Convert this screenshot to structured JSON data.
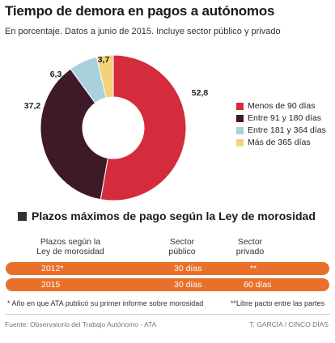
{
  "header": {
    "title": "Tiempo de demora en pagos a autónomos",
    "subtitle": "En porcentaje. Datos a junio de 2015. Incluye sector público y privado"
  },
  "chart_data": {
    "type": "pie",
    "donut": true,
    "title": "Tiempo de demora en pagos a autónomos",
    "subtitle": "En porcentaje. Datos a junio de 2015. Incluye sector público y privado",
    "categories": [
      "Menos de 90 días",
      "Entre 91 y 180 días",
      "Entre 181 y 364 días",
      "Más de 365 días"
    ],
    "values": [
      52.8,
      37.2,
      6.3,
      3.7
    ],
    "value_labels": [
      "52,8",
      "37,2",
      "6,3",
      "3,7"
    ],
    "colors": [
      "#d42c3c",
      "#3e1a28",
      "#a9d0dd",
      "#f3d27a"
    ],
    "legend_position": "right"
  },
  "table": {
    "section_title": "Plazos máximos de pago según la Ley de morosidad",
    "headers": {
      "col1": "Plazos según la\nLey de morosidad",
      "col2": "Sector\npúblico",
      "col3": "Sector\nprivado"
    },
    "rows": [
      {
        "year": "2012*",
        "public": "30 días",
        "private": "**"
      },
      {
        "year": "2015",
        "public": "30 días",
        "private": "60 días"
      }
    ],
    "row_color": "#e8702a",
    "footnote_left": "* Año en que ATA publicó su primer informe sobre morosidad",
    "footnote_right": "**Libre pacto entre las partes"
  },
  "footer": {
    "source": "Fuente: Observatorio del Trabajo Autónomo - ATA",
    "credit": "T. GARCÍA / CINCO DÍAS"
  }
}
